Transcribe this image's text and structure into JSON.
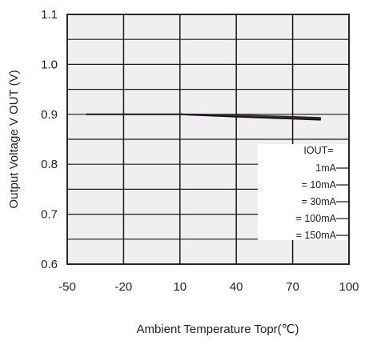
{
  "chart_data": {
    "type": "line",
    "title": "",
    "xlabel": "Ambient Temperature Topr(℃)",
    "ylabel": "Output Voltage V  OUT (V)",
    "xlim": [
      -50,
      100
    ],
    "ylim": [
      0.6,
      1.1
    ],
    "x_ticks": [
      -50,
      -20,
      10,
      40,
      70,
      100
    ],
    "y_ticks": [
      0.6,
      0.7,
      0.8,
      0.9,
      1.0,
      1.1
    ],
    "x_tick_labels": [
      "-50",
      "-20",
      "10",
      "40",
      "70",
      "100"
    ],
    "y_tick_labels": [
      "0.6",
      "0.7",
      "0.8",
      "0.9",
      "1.0",
      "1.1"
    ],
    "grid": true,
    "legend": {
      "placement": "bottom-right",
      "title": "IOUT=",
      "entries": [
        "1mA",
        "=   10mA",
        "=   30mA",
        "= 100mA",
        "= 150mA"
      ]
    },
    "series": [
      {
        "name": "1mA",
        "color": "#111111",
        "x": [
          -40,
          -25,
          10,
          40,
          70,
          85
        ],
        "y": [
          0.9,
          0.9,
          0.9,
          0.898,
          0.895,
          0.893
        ]
      },
      {
        "name": "10mA",
        "color": "#222222",
        "x": [
          -40,
          -25,
          10,
          40,
          70,
          85
        ],
        "y": [
          0.9,
          0.9,
          0.9,
          0.898,
          0.894,
          0.892
        ]
      },
      {
        "name": "30mA",
        "color": "#6a2a6a",
        "x": [
          10,
          40,
          70,
          85
        ],
        "y": [
          0.9,
          0.897,
          0.893,
          0.891
        ]
      },
      {
        "name": "100mA",
        "color": "#333333",
        "x": [
          10,
          40,
          70,
          85
        ],
        "y": [
          0.9,
          0.896,
          0.892,
          0.89
        ]
      },
      {
        "name": "150mA",
        "color": "#111111",
        "x": [
          10,
          40,
          70,
          85
        ],
        "y": [
          0.9,
          0.895,
          0.891,
          0.889
        ]
      }
    ]
  }
}
